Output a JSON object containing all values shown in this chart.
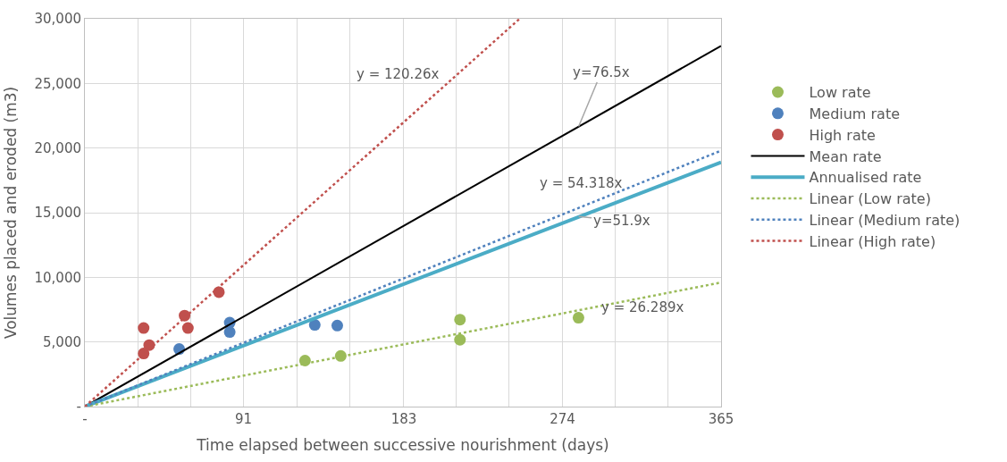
{
  "chart_data": {
    "type": "scatter",
    "xlabel": "Time elapsed between successive nourishment (days)",
    "ylabel": "Volumes placed and eroded (m3)",
    "xlim": [
      0,
      365
    ],
    "ylim": [
      0,
      30000
    ],
    "xticks": [
      {
        "value": 0,
        "label": "-"
      },
      {
        "value": 30.4,
        "label": null
      },
      {
        "value": 60.8,
        "label": null
      },
      91,
      {
        "value": 121.7,
        "label": null
      },
      {
        "value": 152.1,
        "label": null
      },
      183,
      {
        "value": 212.9,
        "label": null
      },
      {
        "value": 243.3,
        "label": null
      },
      274,
      {
        "value": 304.2,
        "label": null
      },
      {
        "value": 334.6,
        "label": null
      },
      365
    ],
    "yticks": [
      {
        "value": 0,
        "label": "-"
      },
      {
        "value": 5000,
        "label": "5,000"
      },
      {
        "value": 10000,
        "label": "10,000"
      },
      {
        "value": 15000,
        "label": "15,000"
      },
      {
        "value": 20000,
        "label": "20,000"
      },
      {
        "value": 25000,
        "label": "25,000"
      },
      {
        "value": 30000,
        "label": "30,000"
      }
    ],
    "grid": true,
    "legend": "right",
    "series": [
      {
        "name": "Low rate",
        "marker": "circle",
        "color": "#9bbb59",
        "x": [
          126.3,
          146.8,
          215.2,
          215.2,
          283.2
        ],
        "values": [
          3560,
          3920,
          6730,
          5170,
          6870
        ]
      },
      {
        "name": "Medium rate",
        "marker": "circle",
        "color": "#4f81bd",
        "x": [
          54.1,
          83.1,
          83.1,
          131.9,
          144.8
        ],
        "values": [
          4450,
          6490,
          5770,
          6320,
          6270
        ]
      },
      {
        "name": "High rate",
        "marker": "circle",
        "color": "#c0504d",
        "x": [
          33.7,
          36.9,
          33.7,
          57.2,
          59.1,
          76.9
        ],
        "values": [
          6080,
          4760,
          4110,
          7040,
          6080,
          8850
        ]
      },
      {
        "name": "Mean rate",
        "type": "line",
        "line_style": "solid",
        "color": "#000000",
        "x": [
          0,
          365
        ],
        "values": [
          0,
          27900
        ]
      },
      {
        "name": "Annualised rate",
        "type": "line",
        "line_style": "solid",
        "color": "#4bacc6",
        "x": [
          0,
          365
        ],
        "values": [
          0,
          18900
        ]
      },
      {
        "name": "Linear (Low rate)",
        "type": "line",
        "line_style": "dotted",
        "color": "#9bbb59",
        "x": [
          0,
          365
        ],
        "values": [
          0,
          9600
        ]
      },
      {
        "name": "Linear (Medium rate)",
        "type": "line",
        "line_style": "dotted",
        "color": "#4f81bd",
        "x": [
          0,
          365
        ],
        "values": [
          0,
          19800
        ]
      },
      {
        "name": "Linear (High rate)",
        "type": "line",
        "line_style": "dotted",
        "color": "#c0504d",
        "x": [
          0,
          249.46
        ],
        "values": [
          0,
          30000
        ]
      }
    ],
    "annotations": [
      {
        "text": "y = 120.26x",
        "x": 200,
        "y": 24052
      },
      {
        "text": "y=76.5x",
        "x": 283.3,
        "y": 21672
      },
      {
        "text": "y = 54.318x",
        "x": 300,
        "y": 16295
      },
      {
        "text": "y=51.9x",
        "x": 283.3,
        "y": 14703
      },
      {
        "text": "y = 26.289x",
        "x": 330,
        "y": 8675
      }
    ]
  }
}
